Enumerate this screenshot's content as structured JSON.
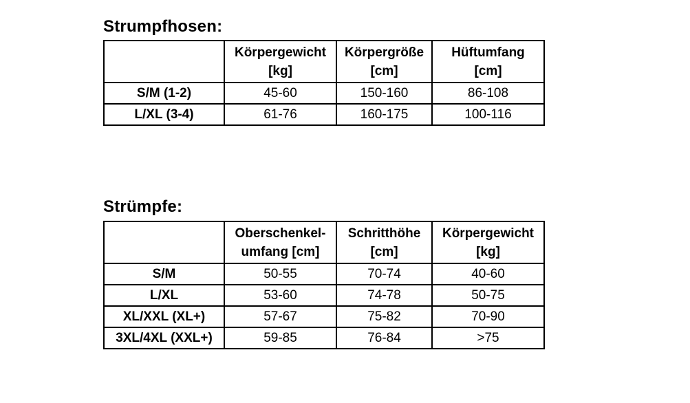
{
  "page": {
    "background": "#ffffff",
    "text_color": "#000000",
    "border_color": "#000000"
  },
  "strumpfhosen": {
    "title": "Strumpfhosen:",
    "headers": [
      {
        "line1": "",
        "line2": ""
      },
      {
        "line1": "Körpergewicht",
        "line2": "[kg]"
      },
      {
        "line1": "Körpergröße",
        "line2": "[cm]"
      },
      {
        "line1": "Hüftumfang",
        "line2": "[cm]"
      }
    ],
    "rows": [
      {
        "label": "S/M (1-2)",
        "values": [
          "45-60",
          "150-160",
          "86-108"
        ]
      },
      {
        "label": "L/XL (3-4)",
        "values": [
          "61-76",
          "160-175",
          "100-116"
        ]
      }
    ]
  },
  "struempfe": {
    "title": "Strümpfe:",
    "headers": [
      {
        "line1": "",
        "line2": ""
      },
      {
        "line1": "Oberschenkel-",
        "line2": "umfang [cm]"
      },
      {
        "line1": "Schritthöhe",
        "line2": "[cm]"
      },
      {
        "line1": "Körpergewicht",
        "line2": "[kg]"
      }
    ],
    "rows": [
      {
        "label": "S/M",
        "values": [
          "50-55",
          "70-74",
          "40-60"
        ]
      },
      {
        "label": "L/XL",
        "values": [
          "53-60",
          "74-78",
          "50-75"
        ]
      },
      {
        "label": "XL/XXL (XL+)",
        "values": [
          "57-67",
          "75-82",
          "70-90"
        ]
      },
      {
        "label": "3XL/4XL (XXL+)",
        "values": [
          "59-85",
          "76-84",
          ">75"
        ]
      }
    ]
  }
}
